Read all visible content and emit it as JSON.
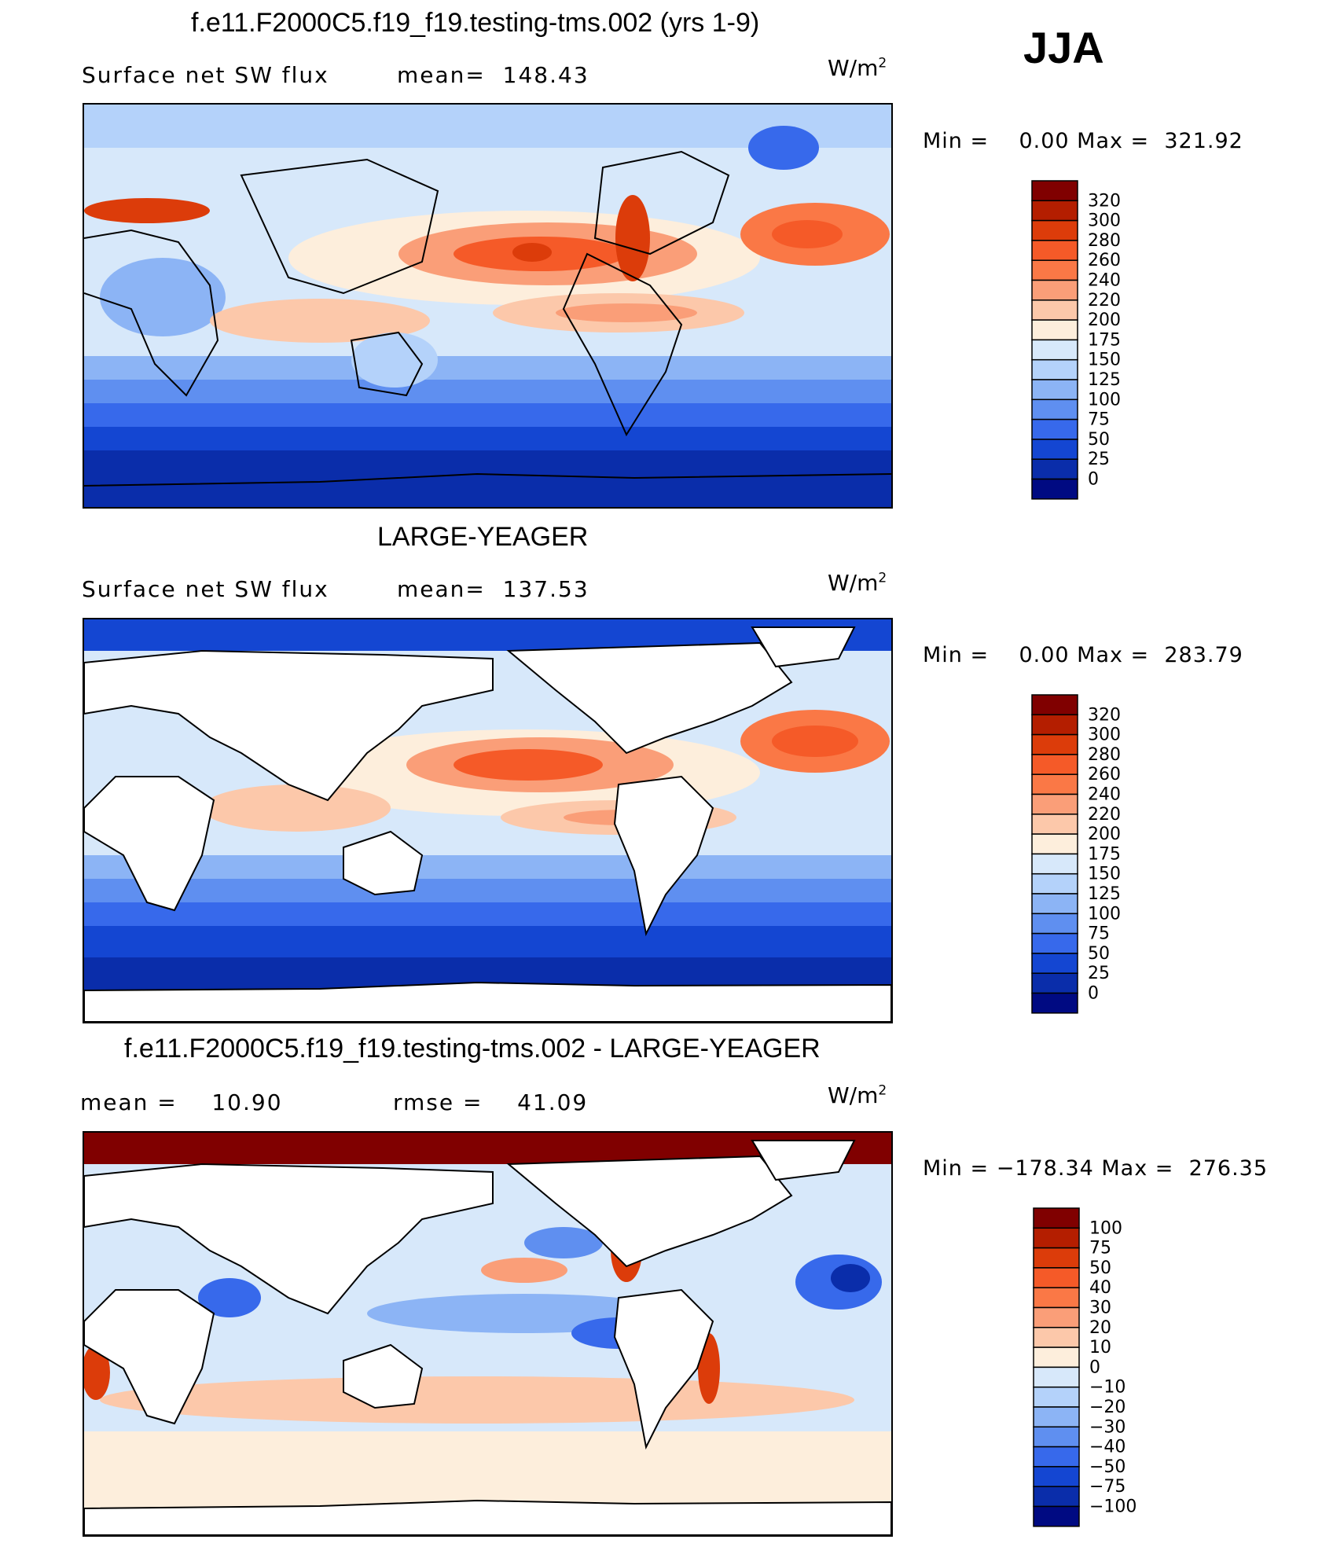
{
  "season": "JJA",
  "chart_data": [
    {
      "type": "heatmap",
      "title": "f.e11.F2000C5.f19_f19.testing-tms.002 (yrs 1-9)",
      "variable": "Surface net SW flux",
      "stat_text": "mean=  148.43",
      "mean": 148.43,
      "units_base": "W/m",
      "units_exp": "2",
      "minmax_text": "Min =    0.00 Max =  321.92",
      "min": 0.0,
      "max": 321.92,
      "colorbar": {
        "levels": [
          "320",
          "300",
          "280",
          "260",
          "240",
          "220",
          "200",
          "175",
          "150",
          "125",
          "100",
          "75",
          "50",
          "25",
          "0"
        ],
        "colors": [
          "#800000",
          "#b41e00",
          "#dc3c0a",
          "#f55a28",
          "#fa7846",
          "#fa9e78",
          "#fcc8aa",
          "#fdeedc",
          "#d7e8fa",
          "#b4d2fa",
          "#8cb4f5",
          "#5f8ff0",
          "#3769eb",
          "#1446d2",
          "#0a2daa",
          "#000a82"
        ]
      }
    },
    {
      "type": "heatmap",
      "title": "LARGE-YEAGER",
      "variable": "Surface net SW flux",
      "stat_text": "mean=  137.53",
      "mean": 137.53,
      "units_base": "W/m",
      "units_exp": "2",
      "minmax_text": "Min =    0.00 Max =  283.79",
      "min": 0.0,
      "max": 283.79,
      "colorbar": {
        "levels": [
          "320",
          "300",
          "280",
          "260",
          "240",
          "220",
          "200",
          "175",
          "150",
          "125",
          "100",
          "75",
          "50",
          "25",
          "0"
        ],
        "colors": [
          "#800000",
          "#b41e00",
          "#dc3c0a",
          "#f55a28",
          "#fa7846",
          "#fa9e78",
          "#fcc8aa",
          "#fdeedc",
          "#d7e8fa",
          "#b4d2fa",
          "#8cb4f5",
          "#5f8ff0",
          "#3769eb",
          "#1446d2",
          "#0a2daa",
          "#000a82"
        ]
      }
    },
    {
      "type": "heatmap",
      "title": "f.e11.F2000C5.f19_f19.testing-tms.002 - LARGE-YEAGER",
      "stat_text": "mean =    10.90",
      "mean": 10.9,
      "rmse_text": "rmse =    41.09",
      "rmse": 41.09,
      "units_base": "W/m",
      "units_exp": "2",
      "minmax_text": "Min = −178.34 Max =  276.35",
      "min": -178.34,
      "max": 276.35,
      "colorbar": {
        "levels": [
          "100",
          "75",
          "50",
          "40",
          "30",
          "20",
          "10",
          "0",
          "−10",
          "−20",
          "−30",
          "−40",
          "−50",
          "−75",
          "−100"
        ],
        "colors": [
          "#800000",
          "#b41e00",
          "#dc3c0a",
          "#f55a28",
          "#fa7846",
          "#fa9e78",
          "#fcc8aa",
          "#fdeedc",
          "#d7e8fa",
          "#b4d2fa",
          "#8cb4f5",
          "#5f8ff0",
          "#3769eb",
          "#1446d2",
          "#0a2daa",
          "#000a82"
        ]
      }
    }
  ]
}
